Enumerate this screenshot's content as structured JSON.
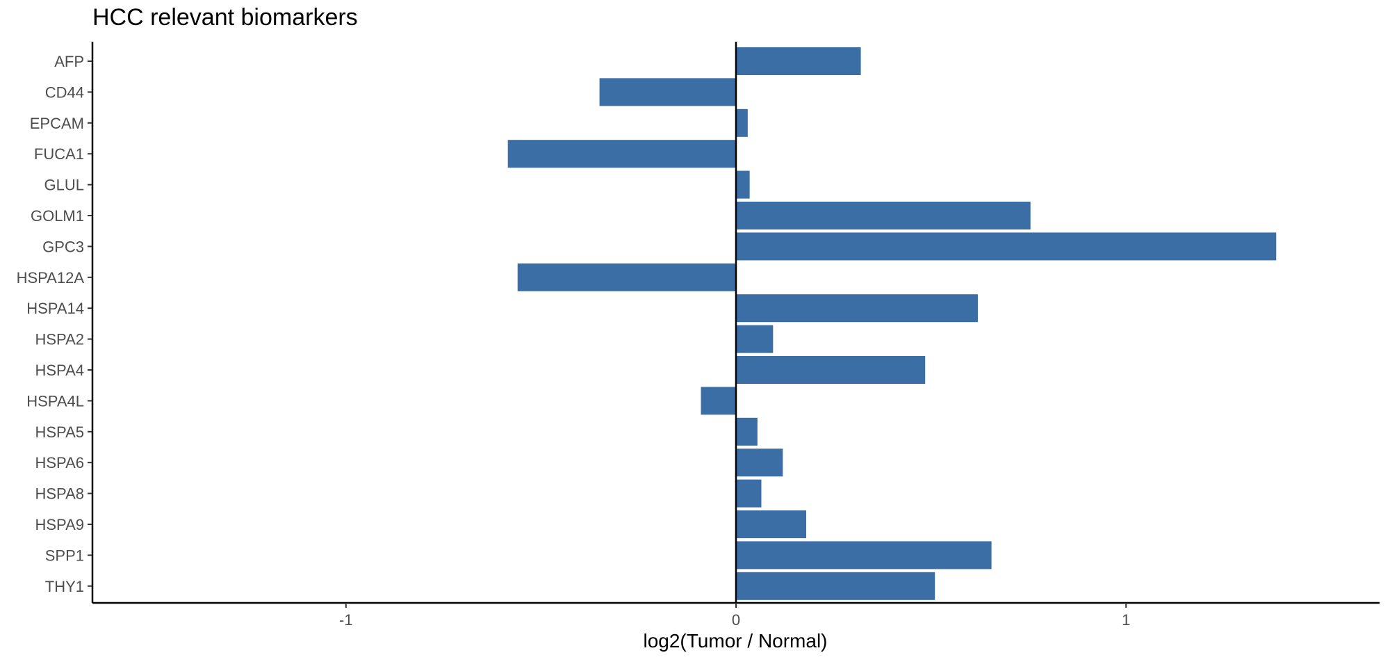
{
  "chart_data": {
    "type": "bar",
    "orientation": "horizontal",
    "title": "HCC relevant biomarkers",
    "xlabel": "log2(Tumor / Normal)",
    "ylabel": "",
    "xlim": [
      -1.65,
      1.65
    ],
    "xticks": [
      -1,
      0,
      1
    ],
    "xtick_labels": [
      "-1",
      "0",
      "1"
    ],
    "grid": false,
    "legend": "none",
    "bar_color": "#3a6ea5",
    "categories": [
      "AFP",
      "CD44",
      "EPCAM",
      "FUCA1",
      "GLUL",
      "GOLM1",
      "GPC3",
      "HSPA12A",
      "HSPA14",
      "HSPA2",
      "HSPA4",
      "HSPA4L",
      "HSPA5",
      "HSPA6",
      "HSPA8",
      "HSPA9",
      "SPP1",
      "THY1"
    ],
    "values": [
      0.32,
      -0.35,
      0.03,
      -0.585,
      0.035,
      0.755,
      1.385,
      -0.56,
      0.62,
      0.095,
      0.485,
      -0.09,
      0.055,
      0.12,
      0.065,
      0.18,
      0.655,
      0.51
    ]
  }
}
